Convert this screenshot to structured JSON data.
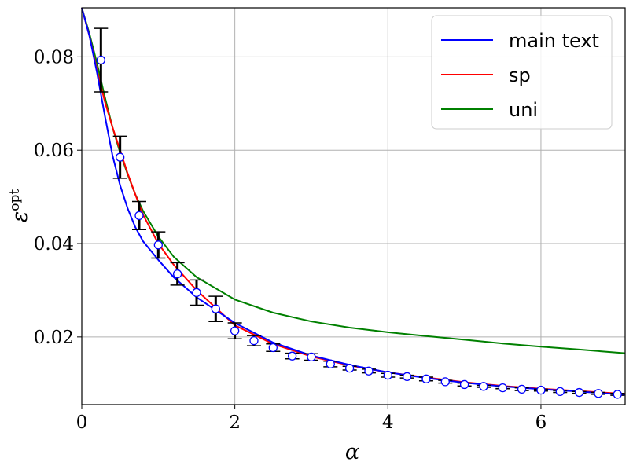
{
  "chart_data": {
    "type": "line",
    "xlabel": "α",
    "ylabel": "ε",
    "ylabel_superscript": "opt",
    "xlim": [
      0,
      7.1
    ],
    "ylim": [
      0.0055,
      0.0905
    ],
    "xticks": [
      0,
      2,
      4,
      6
    ],
    "xtick_labels": [
      "0",
      "2",
      "4",
      "6"
    ],
    "yticks": [
      0.02,
      0.04,
      0.06,
      0.08
    ],
    "ytick_labels": [
      "0.02",
      "0.04",
      "0.06",
      "0.08"
    ],
    "grid": true,
    "legend_position": "top-right",
    "series": [
      {
        "name": "main text",
        "color": "#0000ff",
        "x": [
          0,
          0.1,
          0.2,
          0.3,
          0.4,
          0.5,
          0.6,
          0.7,
          0.8,
          1.0,
          1.2,
          1.5,
          2.0,
          2.5,
          3.0,
          3.5,
          4.0,
          4.5,
          5.0,
          5.5,
          6.0,
          6.5,
          7.1
        ],
        "y": [
          0.0905,
          0.0845,
          0.0765,
          0.0675,
          0.059,
          0.0525,
          0.0475,
          0.0435,
          0.0405,
          0.0365,
          0.0328,
          0.0285,
          0.023,
          0.0188,
          0.016,
          0.014,
          0.0124,
          0.0112,
          0.0102,
          0.0094,
          0.0088,
          0.0083,
          0.0076
        ]
      },
      {
        "name": "sp",
        "color": "#ff0000",
        "x": [
          0,
          0.1,
          0.2,
          0.3,
          0.4,
          0.5,
          0.6,
          0.7,
          0.8,
          1.0,
          1.2,
          1.5,
          2.0,
          2.5,
          3.0,
          3.5,
          4.0,
          4.5,
          5.0,
          5.5,
          6.0,
          6.5,
          7.1
        ],
        "y": [
          0.0905,
          0.0845,
          0.077,
          0.0705,
          0.065,
          0.06,
          0.055,
          0.0505,
          0.0462,
          0.04,
          0.0355,
          0.03,
          0.0225,
          0.0185,
          0.0158,
          0.0139,
          0.0124,
          0.0113,
          0.0103,
          0.0095,
          0.0089,
          0.0084,
          0.0078
        ]
      },
      {
        "name": "uni",
        "color": "#008000",
        "x": [
          0,
          0.1,
          0.2,
          0.3,
          0.4,
          0.5,
          0.6,
          0.7,
          0.8,
          1.0,
          1.2,
          1.5,
          2.0,
          2.5,
          3.0,
          3.5,
          4.0,
          4.5,
          5.0,
          5.5,
          6.0,
          6.5,
          7.1
        ],
        "y": [
          0.0905,
          0.085,
          0.0785,
          0.0715,
          0.065,
          0.0595,
          0.0548,
          0.0505,
          0.047,
          0.0415,
          0.0372,
          0.0328,
          0.028,
          0.0252,
          0.0233,
          0.022,
          0.021,
          0.0202,
          0.0194,
          0.0186,
          0.0179,
          0.0173,
          0.0165
        ]
      }
    ],
    "error_points": {
      "x": [
        0.25,
        0.5,
        0.75,
        1.0,
        1.25,
        1.5,
        1.75,
        2.0,
        2.25,
        2.5,
        2.75,
        3.0,
        3.25,
        3.5,
        3.75,
        4.0,
        4.25,
        4.5,
        4.75,
        5.0,
        5.25,
        5.5,
        5.75,
        6.0,
        6.25,
        6.5,
        6.75,
        7.0
      ],
      "y": [
        0.0793,
        0.0585,
        0.046,
        0.0397,
        0.0335,
        0.0295,
        0.026,
        0.0213,
        0.0192,
        0.0177,
        0.0159,
        0.0157,
        0.0142,
        0.0133,
        0.0127,
        0.0118,
        0.0115,
        0.011,
        0.0104,
        0.0098,
        0.0094,
        0.0091,
        0.0088,
        0.0086,
        0.0083,
        0.0081,
        0.0079,
        0.0077
      ],
      "err": [
        0.0068,
        0.0045,
        0.003,
        0.0028,
        0.0024,
        0.0027,
        0.0027,
        0.0017,
        0.0011,
        0.0008,
        0.0006,
        0.0007,
        0.0006,
        0.0004,
        0.0004,
        0.0004,
        0.0003,
        0.0004,
        0.0003,
        0.0003,
        0.0002,
        0.0002,
        0.0003,
        0.0002,
        0.0002,
        0.0002,
        0.0002,
        0.0002
      ]
    }
  }
}
